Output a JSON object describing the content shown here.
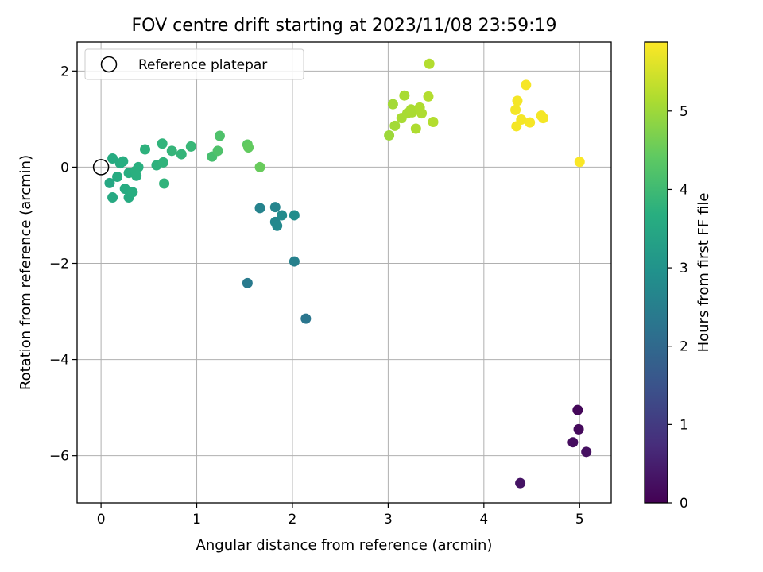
{
  "chart_data": {
    "type": "scatter",
    "title": "FOV centre drift starting at 2023/11/08 23:59:19",
    "xlabel": "Angular distance from reference (arcmin)",
    "ylabel": "Rotation from reference (arcmin)",
    "xlim": [
      -0.25,
      5.33
    ],
    "ylim": [
      -6.98,
      2.6
    ],
    "xticks": [
      0,
      1,
      2,
      3,
      4,
      5
    ],
    "yticks": [
      2,
      0,
      -2,
      -4,
      -6
    ],
    "xtick_labels": [
      "0",
      "1",
      "2",
      "3",
      "4",
      "5"
    ],
    "ytick_labels": [
      "2",
      "0",
      "−2",
      "−4",
      "−6"
    ],
    "grid": true,
    "legend": {
      "placement": "top-left",
      "entries": [
        {
          "label": "Reference platepar",
          "marker": "open-circle"
        }
      ]
    },
    "reference_point": {
      "x": 0,
      "y": 0
    },
    "colorbar": {
      "label": "Hours from first FF file",
      "colormap": "viridis",
      "range": [
        0,
        5.88
      ],
      "ticks": [
        0,
        1,
        2,
        3,
        4,
        5
      ],
      "tick_labels": [
        "0",
        "1",
        "2",
        "3",
        "4",
        "5"
      ]
    },
    "points": [
      {
        "x": 4.98,
        "y": -5.05,
        "hours": 0.1
      },
      {
        "x": 4.99,
        "y": -5.45,
        "hours": 0.15
      },
      {
        "x": 4.93,
        "y": -5.72,
        "hours": 0.2
      },
      {
        "x": 5.07,
        "y": -5.92,
        "hours": 0.25
      },
      {
        "x": 4.38,
        "y": -6.57,
        "hours": 0.3
      },
      {
        "x": 2.14,
        "y": -3.15,
        "hours": 2.3
      },
      {
        "x": 1.53,
        "y": -2.41,
        "hours": 2.4
      },
      {
        "x": 2.02,
        "y": -1.96,
        "hours": 2.55
      },
      {
        "x": 1.66,
        "y": -0.85,
        "hours": 2.6
      },
      {
        "x": 1.82,
        "y": -0.83,
        "hours": 2.65
      },
      {
        "x": 1.82,
        "y": -1.14,
        "hours": 2.7
      },
      {
        "x": 1.84,
        "y": -1.22,
        "hours": 2.75
      },
      {
        "x": 1.89,
        "y": -1.0,
        "hours": 2.8
      },
      {
        "x": 2.02,
        "y": -1.0,
        "hours": 2.85
      },
      {
        "x": 0.09,
        "y": -0.33,
        "hours": 3.5
      },
      {
        "x": 0.12,
        "y": -0.63,
        "hours": 3.55
      },
      {
        "x": 0.17,
        "y": -0.2,
        "hours": 3.6
      },
      {
        "x": 0.12,
        "y": 0.18,
        "hours": 3.6
      },
      {
        "x": 0.2,
        "y": 0.08,
        "hours": 3.6
      },
      {
        "x": 0.23,
        "y": 0.12,
        "hours": 3.65
      },
      {
        "x": 0.25,
        "y": -0.45,
        "hours": 3.6
      },
      {
        "x": 0.29,
        "y": -0.63,
        "hours": 3.6
      },
      {
        "x": 0.29,
        "y": -0.12,
        "hours": 3.65
      },
      {
        "x": 0.33,
        "y": -0.52,
        "hours": 3.65
      },
      {
        "x": 0.36,
        "y": -0.08,
        "hours": 3.7
      },
      {
        "x": 0.37,
        "y": -0.18,
        "hours": 3.7
      },
      {
        "x": 0.39,
        "y": 0.0,
        "hours": 3.7
      },
      {
        "x": 0.46,
        "y": 0.37,
        "hours": 3.75
      },
      {
        "x": 0.58,
        "y": 0.04,
        "hours": 3.75
      },
      {
        "x": 0.64,
        "y": 0.49,
        "hours": 3.8
      },
      {
        "x": 0.65,
        "y": 0.1,
        "hours": 3.8
      },
      {
        "x": 0.66,
        "y": -0.34,
        "hours": 3.8
      },
      {
        "x": 0.74,
        "y": 0.34,
        "hours": 3.85
      },
      {
        "x": 0.84,
        "y": 0.27,
        "hours": 3.85
      },
      {
        "x": 0.94,
        "y": 0.43,
        "hours": 3.9
      },
      {
        "x": 1.16,
        "y": 0.22,
        "hours": 4.1
      },
      {
        "x": 1.22,
        "y": 0.34,
        "hours": 4.2
      },
      {
        "x": 1.24,
        "y": 0.65,
        "hours": 4.2
      },
      {
        "x": 1.53,
        "y": 0.47,
        "hours": 4.4
      },
      {
        "x": 1.54,
        "y": 0.41,
        "hours": 4.45
      },
      {
        "x": 1.66,
        "y": 0.0,
        "hours": 4.5
      },
      {
        "x": 3.01,
        "y": 0.66,
        "hours": 5.0
      },
      {
        "x": 3.05,
        "y": 1.31,
        "hours": 5.05
      },
      {
        "x": 3.07,
        "y": 0.86,
        "hours": 5.05
      },
      {
        "x": 3.14,
        "y": 1.02,
        "hours": 5.1
      },
      {
        "x": 3.17,
        "y": 1.49,
        "hours": 5.1
      },
      {
        "x": 3.2,
        "y": 1.12,
        "hours": 5.1
      },
      {
        "x": 3.24,
        "y": 1.2,
        "hours": 5.12
      },
      {
        "x": 3.25,
        "y": 1.14,
        "hours": 5.12
      },
      {
        "x": 3.29,
        "y": 0.8,
        "hours": 5.15
      },
      {
        "x": 3.33,
        "y": 1.24,
        "hours": 5.15
      },
      {
        "x": 3.35,
        "y": 1.12,
        "hours": 5.15
      },
      {
        "x": 3.42,
        "y": 1.47,
        "hours": 5.2
      },
      {
        "x": 3.43,
        "y": 2.15,
        "hours": 5.2
      },
      {
        "x": 3.47,
        "y": 0.94,
        "hours": 5.2
      },
      {
        "x": 4.33,
        "y": 1.19,
        "hours": 5.8
      },
      {
        "x": 4.35,
        "y": 1.38,
        "hours": 5.8
      },
      {
        "x": 4.34,
        "y": 0.85,
        "hours": 5.8
      },
      {
        "x": 4.39,
        "y": 0.99,
        "hours": 5.8
      },
      {
        "x": 4.44,
        "y": 1.71,
        "hours": 5.82
      },
      {
        "x": 4.48,
        "y": 0.93,
        "hours": 5.82
      },
      {
        "x": 4.6,
        "y": 1.07,
        "hours": 5.8
      },
      {
        "x": 4.62,
        "y": 1.02,
        "hours": 5.8
      },
      {
        "x": 5.0,
        "y": 0.11,
        "hours": 5.85
      }
    ]
  }
}
